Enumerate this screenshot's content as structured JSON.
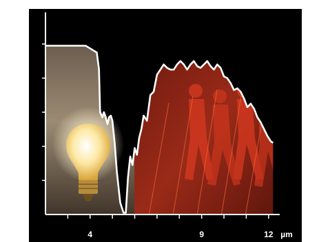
{
  "chart_data": {
    "type": "area",
    "title": "",
    "xlabel": "",
    "ylabel": "",
    "unit_label": "µm",
    "xlim": [
      2,
      12.5
    ],
    "ylim": [
      0,
      1
    ],
    "xticks": [
      3,
      4,
      5,
      6,
      7,
      8,
      9,
      10,
      11,
      12
    ],
    "tick_labels": [
      {
        "x": 4,
        "label": "4"
      },
      {
        "x": 9,
        "label": "9"
      },
      {
        "x": 12,
        "label": "12"
      }
    ],
    "yticks": [
      0.2,
      0.4,
      0.6,
      0.8,
      1.0
    ],
    "grid": false,
    "series": [
      {
        "x": [
          2.0,
          3.8,
          4.3,
          4.4,
          4.45,
          4.55,
          4.62,
          4.7,
          4.78,
          4.85,
          4.93,
          5.0,
          5.1,
          5.2,
          5.35,
          5.5,
          5.6,
          5.7,
          5.8,
          5.9,
          6.0,
          6.1,
          6.2,
          6.3,
          6.4,
          6.55,
          6.7,
          6.85,
          7.0,
          7.15,
          7.3,
          7.45,
          7.6,
          7.75,
          7.9,
          8.05,
          8.2,
          8.35,
          8.5,
          8.65,
          8.8,
          8.95,
          9.1,
          9.25,
          9.4,
          9.55,
          9.7,
          9.85,
          10.0,
          10.15,
          10.3,
          10.45,
          10.6,
          10.75,
          10.9,
          11.05,
          11.2,
          11.35,
          11.5,
          11.65,
          11.8,
          11.95,
          12.1,
          12.2
        ],
        "values": [
          0.99,
          0.99,
          0.95,
          0.85,
          0.6,
          0.57,
          0.6,
          0.57,
          0.53,
          0.57,
          0.58,
          0.55,
          0.42,
          0.25,
          0.07,
          0.01,
          0.01,
          0.22,
          0.34,
          0.29,
          0.39,
          0.35,
          0.45,
          0.5,
          0.58,
          0.55,
          0.7,
          0.72,
          0.82,
          0.85,
          0.88,
          0.86,
          0.85,
          0.85,
          0.88,
          0.9,
          0.88,
          0.85,
          0.88,
          0.9,
          0.87,
          0.86,
          0.88,
          0.9,
          0.87,
          0.85,
          0.88,
          0.86,
          0.81,
          0.8,
          0.77,
          0.73,
          0.74,
          0.72,
          0.68,
          0.63,
          0.65,
          0.62,
          0.57,
          0.54,
          0.5,
          0.46,
          0.43,
          0.42
        ]
      }
    ]
  },
  "image": {
    "left_photo_icon": "light-bulb",
    "right_photo_icon": "walking-figures-thermal"
  },
  "colors": {
    "background": "#000000",
    "frame": "#ffffff",
    "curve": "#ffffff",
    "thermal": "#d2321a"
  }
}
